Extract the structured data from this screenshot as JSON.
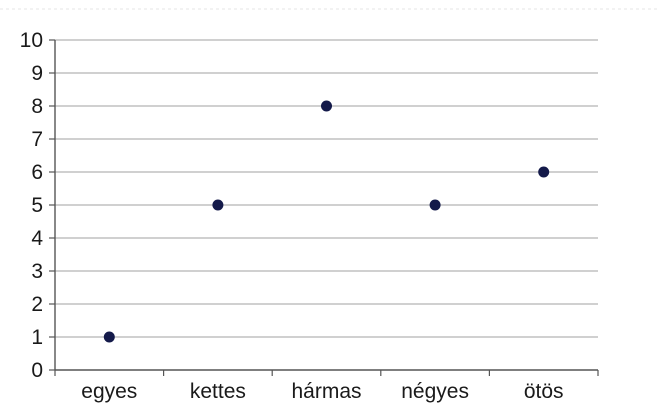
{
  "chart_data": {
    "type": "scatter",
    "title": "",
    "xlabel": "",
    "ylabel": "",
    "categories": [
      "egyes",
      "kettes",
      "hármas",
      "négyes",
      "ötös"
    ],
    "values": [
      1,
      5,
      8,
      5,
      6
    ],
    "ylim": [
      0,
      10
    ],
    "yticks": [
      "0",
      "1",
      "2",
      "3",
      "4",
      "5",
      "6",
      "7",
      "8",
      "9",
      "10"
    ],
    "grid": true,
    "legend": "none",
    "colors": {
      "marker": "#141a4a",
      "grid": "#b4b4b4",
      "axis": "#555555",
      "text": "#1a1a1a"
    }
  }
}
